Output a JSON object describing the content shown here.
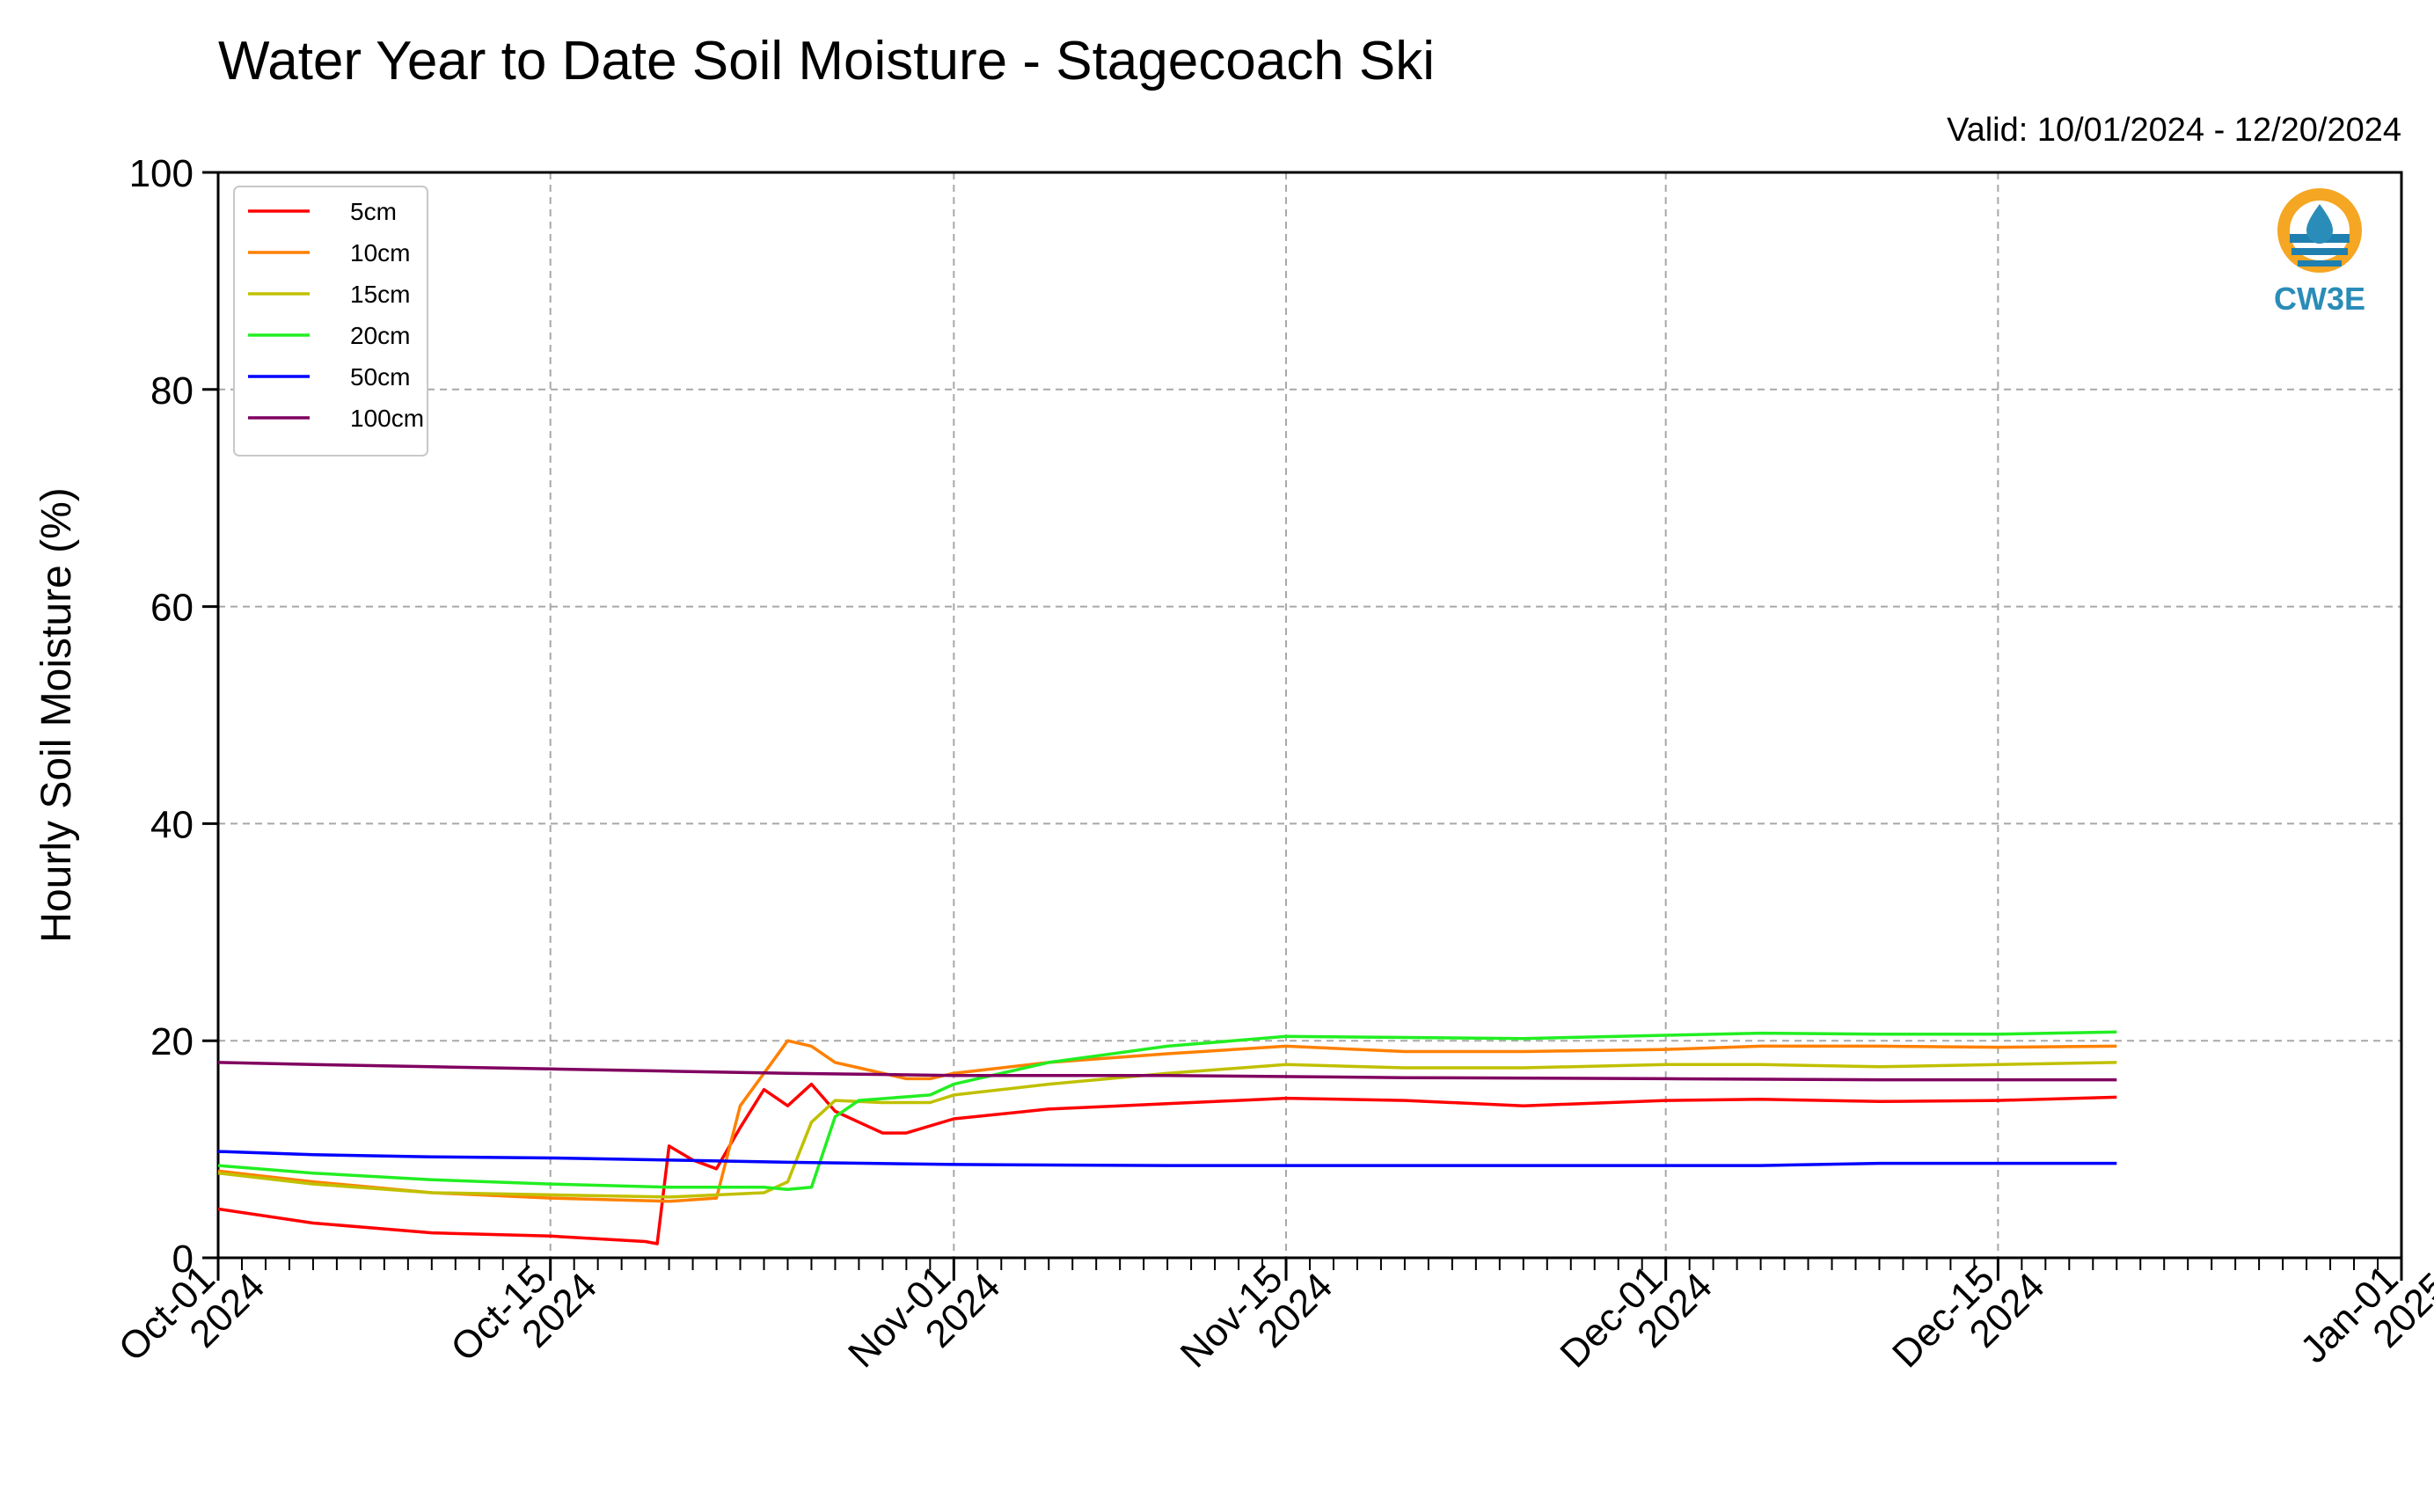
{
  "chart_data": {
    "type": "line",
    "title": "Water Year to Date Soil Moisture - Stagecoach Ski",
    "subtitle": "Valid: 10/01/2024 - 12/20/2024",
    "xlabel": "",
    "ylabel": "Hourly Soil Moisture (%)",
    "xlim": [
      "2024-10-01",
      "2025-01-01"
    ],
    "ylim": [
      0,
      100
    ],
    "yticks": [
      0,
      20,
      40,
      60,
      80,
      100
    ],
    "xticks": [
      {
        "date": "2024-10-01",
        "label1": "Oct-01",
        "label2": "2024"
      },
      {
        "date": "2024-10-15",
        "label1": "Oct-15",
        "label2": "2024"
      },
      {
        "date": "2024-11-01",
        "label1": "Nov-01",
        "label2": "2024"
      },
      {
        "date": "2024-11-15",
        "label1": "Nov-15",
        "label2": "2024"
      },
      {
        "date": "2024-12-01",
        "label1": "Dec-01",
        "label2": "2024"
      },
      {
        "date": "2024-12-15",
        "label1": "Dec-15",
        "label2": "2024"
      },
      {
        "date": "2025-01-01",
        "label1": "Jan-01",
        "label2": "2025"
      }
    ],
    "grid": true,
    "legend_position": "top-left",
    "series": [
      {
        "name": "5cm",
        "color": "#ff0000",
        "points": [
          [
            "2024-10-01",
            4.5
          ],
          [
            "2024-10-05",
            3.2
          ],
          [
            "2024-10-10",
            2.3
          ],
          [
            "2024-10-15",
            2.0
          ],
          [
            "2024-10-19",
            1.5
          ],
          [
            "2024-10-19T12",
            1.3
          ],
          [
            "2024-10-20",
            10.3
          ],
          [
            "2024-10-21",
            9.0
          ],
          [
            "2024-10-22",
            8.2
          ],
          [
            "2024-10-23",
            12.0
          ],
          [
            "2024-10-24",
            15.5
          ],
          [
            "2024-10-25",
            14.0
          ],
          [
            "2024-10-26",
            16.0
          ],
          [
            "2024-10-27",
            13.5
          ],
          [
            "2024-10-28",
            12.5
          ],
          [
            "2024-10-29",
            11.5
          ],
          [
            "2024-10-30",
            11.5
          ],
          [
            "2024-11-01",
            12.8
          ],
          [
            "2024-11-05",
            13.7
          ],
          [
            "2024-11-10",
            14.2
          ],
          [
            "2024-11-15",
            14.7
          ],
          [
            "2024-11-20",
            14.5
          ],
          [
            "2024-11-25",
            14.0
          ],
          [
            "2024-12-01",
            14.5
          ],
          [
            "2024-12-05",
            14.6
          ],
          [
            "2024-12-10",
            14.4
          ],
          [
            "2024-12-15",
            14.5
          ],
          [
            "2024-12-20",
            14.8
          ]
        ]
      },
      {
        "name": "10cm",
        "color": "#ff8000",
        "points": [
          [
            "2024-10-01",
            8.0
          ],
          [
            "2024-10-05",
            7.0
          ],
          [
            "2024-10-10",
            6.0
          ],
          [
            "2024-10-15",
            5.5
          ],
          [
            "2024-10-20",
            5.2
          ],
          [
            "2024-10-22",
            5.5
          ],
          [
            "2024-10-23",
            14.0
          ],
          [
            "2024-10-24",
            17.0
          ],
          [
            "2024-10-25",
            20.0
          ],
          [
            "2024-10-26",
            19.5
          ],
          [
            "2024-10-27",
            18.0
          ],
          [
            "2024-10-28",
            17.5
          ],
          [
            "2024-10-29",
            17.0
          ],
          [
            "2024-10-30",
            16.5
          ],
          [
            "2024-10-31",
            16.5
          ],
          [
            "2024-11-01",
            17.0
          ],
          [
            "2024-11-05",
            18.0
          ],
          [
            "2024-11-10",
            18.8
          ],
          [
            "2024-11-15",
            19.5
          ],
          [
            "2024-11-20",
            19.0
          ],
          [
            "2024-11-25",
            19.0
          ],
          [
            "2024-12-01",
            19.2
          ],
          [
            "2024-12-05",
            19.5
          ],
          [
            "2024-12-10",
            19.5
          ],
          [
            "2024-12-15",
            19.4
          ],
          [
            "2024-12-20",
            19.5
          ]
        ]
      },
      {
        "name": "15cm",
        "color": "#c0c000",
        "points": [
          [
            "2024-10-01",
            7.8
          ],
          [
            "2024-10-05",
            6.8
          ],
          [
            "2024-10-10",
            6.0
          ],
          [
            "2024-10-15",
            5.8
          ],
          [
            "2024-10-20",
            5.6
          ],
          [
            "2024-10-24",
            6.0
          ],
          [
            "2024-10-25",
            7.0
          ],
          [
            "2024-10-26",
            12.5
          ],
          [
            "2024-10-27",
            14.5
          ],
          [
            "2024-10-29",
            14.3
          ],
          [
            "2024-10-31",
            14.3
          ],
          [
            "2024-11-01",
            15.0
          ],
          [
            "2024-11-05",
            16.0
          ],
          [
            "2024-11-10",
            17.0
          ],
          [
            "2024-11-15",
            17.8
          ],
          [
            "2024-11-20",
            17.5
          ],
          [
            "2024-11-25",
            17.5
          ],
          [
            "2024-12-01",
            17.8
          ],
          [
            "2024-12-05",
            17.8
          ],
          [
            "2024-12-10",
            17.6
          ],
          [
            "2024-12-15",
            17.8
          ],
          [
            "2024-12-20",
            18.0
          ]
        ]
      },
      {
        "name": "20cm",
        "color": "#22ee22",
        "points": [
          [
            "2024-10-01",
            8.5
          ],
          [
            "2024-10-05",
            7.8
          ],
          [
            "2024-10-10",
            7.2
          ],
          [
            "2024-10-15",
            6.8
          ],
          [
            "2024-10-20",
            6.5
          ],
          [
            "2024-10-24",
            6.5
          ],
          [
            "2024-10-25",
            6.3
          ],
          [
            "2024-10-26",
            6.5
          ],
          [
            "2024-10-27",
            13.0
          ],
          [
            "2024-10-28",
            14.5
          ],
          [
            "2024-10-31",
            15.0
          ],
          [
            "2024-11-01",
            16.0
          ],
          [
            "2024-11-05",
            18.0
          ],
          [
            "2024-11-10",
            19.5
          ],
          [
            "2024-11-15",
            20.4
          ],
          [
            "2024-11-20",
            20.3
          ],
          [
            "2024-11-25",
            20.2
          ],
          [
            "2024-12-01",
            20.5
          ],
          [
            "2024-12-05",
            20.7
          ],
          [
            "2024-12-10",
            20.6
          ],
          [
            "2024-12-15",
            20.6
          ],
          [
            "2024-12-20",
            20.8
          ]
        ]
      },
      {
        "name": "50cm",
        "color": "#0000ff",
        "points": [
          [
            "2024-10-01",
            9.8
          ],
          [
            "2024-10-05",
            9.5
          ],
          [
            "2024-10-10",
            9.3
          ],
          [
            "2024-10-15",
            9.2
          ],
          [
            "2024-10-20",
            9.0
          ],
          [
            "2024-10-25",
            8.8
          ],
          [
            "2024-11-01",
            8.6
          ],
          [
            "2024-11-10",
            8.5
          ],
          [
            "2024-11-20",
            8.5
          ],
          [
            "2024-12-01",
            8.5
          ],
          [
            "2024-12-05",
            8.5
          ],
          [
            "2024-12-10",
            8.7
          ],
          [
            "2024-12-15",
            8.7
          ],
          [
            "2024-12-20",
            8.7
          ]
        ]
      },
      {
        "name": "100cm",
        "color": "#800060",
        "points": [
          [
            "2024-10-01",
            18.0
          ],
          [
            "2024-10-05",
            17.8
          ],
          [
            "2024-10-10",
            17.6
          ],
          [
            "2024-10-15",
            17.4
          ],
          [
            "2024-10-20",
            17.2
          ],
          [
            "2024-10-25",
            17.0
          ],
          [
            "2024-11-01",
            16.8
          ],
          [
            "2024-11-10",
            16.8
          ],
          [
            "2024-11-20",
            16.6
          ],
          [
            "2024-12-01",
            16.5
          ],
          [
            "2024-12-10",
            16.4
          ],
          [
            "2024-12-15",
            16.4
          ],
          [
            "2024-12-20",
            16.4
          ]
        ]
      }
    ]
  },
  "logo": {
    "text": "CW3E"
  }
}
